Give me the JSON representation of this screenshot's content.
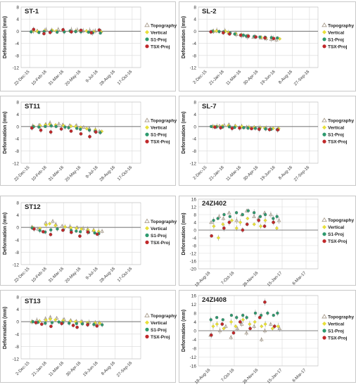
{
  "chart_data": [
    {
      "type": "scatter",
      "title": "ST-1",
      "ylabel": "Deformation (mm)",
      "ylim": [
        -12,
        8
      ],
      "yticks": [
        -12,
        -8,
        -4,
        0,
        4,
        8
      ],
      "xticks": [
        "22-Dec-15",
        "10-Feb-16",
        "31-Mar-16",
        "20-May-16",
        "9-Jul-16",
        "28-Aug-16",
        "17-Oct-16"
      ],
      "grid": true,
      "legend": "right",
      "series": [
        {
          "name": "Topography",
          "values": [
            0.3,
            0.2,
            0.5,
            0.4,
            0.6,
            0.3,
            0.5,
            0.4,
            0.2,
            0.3,
            0.1,
            0.0
          ]
        },
        {
          "name": "Vertical",
          "values": [
            0.1,
            0.0,
            0.2,
            0.3,
            0.1,
            0.2,
            0.0,
            0.1,
            0.2,
            0.1,
            -0.1,
            -0.2
          ]
        },
        {
          "name": "S1-Proj",
          "values": [
            -0.2,
            -0.4,
            -0.1,
            0.0,
            -0.3,
            -0.2,
            0.1,
            -0.1,
            -0.2,
            -0.3,
            -0.5,
            -0.6
          ]
        },
        {
          "name": "TSX-Proj",
          "values": [
            0.6,
            -0.8,
            -0.4,
            0.5,
            -0.2,
            0.3,
            -0.5,
            0.4
          ]
        }
      ]
    },
    {
      "type": "scatter",
      "title": "SL-2",
      "ylabel": "Deformation (mm)",
      "ylim": [
        -12,
        8
      ],
      "yticks": [
        -12,
        -8,
        -4,
        0,
        4,
        8
      ],
      "xticks": [
        "2-Dec-15",
        "21-Jan-16",
        "11-Mar-16",
        "30-Apr-16",
        "19-Jun-16",
        "8-Aug-16",
        "27-Sep-16"
      ],
      "grid": true,
      "legend": "right",
      "series": [
        {
          "name": "Topography",
          "values": [
            0.0,
            0.3,
            0.2,
            -0.5,
            -1.0,
            -1.4,
            -1.8,
            -2.0,
            -2.2,
            -2.4,
            -2.6,
            -2.8
          ]
        },
        {
          "name": "Vertical",
          "values": [
            0.0,
            0.1,
            0.0,
            -0.4,
            -0.8,
            -1.2,
            -1.5,
            -1.8,
            -2.0,
            -2.2,
            -2.3,
            -2.5
          ]
        },
        {
          "name": "S1-Proj",
          "values": [
            0.0,
            -0.1,
            -0.2,
            -0.6,
            -0.9,
            -1.3,
            -1.6,
            -1.7,
            -1.9,
            -2.0,
            -2.1,
            -2.2
          ]
        },
        {
          "name": "TSX-Proj",
          "values": [
            -0.2,
            -0.5,
            -0.9,
            -1.3,
            -1.6,
            -1.9,
            -2.2,
            -2.4
          ]
        }
      ]
    },
    {
      "type": "scatter",
      "title": "ST11",
      "ylabel": "Deformation (mm)",
      "ylim": [
        -12,
        8
      ],
      "yticks": [
        -12,
        -8,
        -4,
        0,
        4,
        8
      ],
      "xticks": [
        "22-Dec-15",
        "10-Feb-16",
        "31-Mar-16",
        "20-May-16",
        "9-Jul-16",
        "28-Aug-16",
        "17-Oct-16"
      ],
      "grid": true,
      "legend": "right",
      "series": [
        {
          "name": "Topography",
          "values": [
            0.2,
            0.5,
            0.8,
            1.2,
            0.9,
            0.6,
            0.4,
            0.3,
            -0.2,
            -0.6,
            -1.0,
            -1.5
          ]
        },
        {
          "name": "Vertical",
          "values": [
            0.1,
            0.3,
            0.5,
            0.7,
            0.5,
            0.3,
            0.1,
            0.0,
            -0.3,
            -0.7,
            -1.1,
            -1.6
          ]
        },
        {
          "name": "S1-Proj",
          "values": [
            -0.1,
            -0.2,
            0.0,
            0.2,
            0.0,
            -0.2,
            -0.4,
            -0.6,
            -0.9,
            -1.2,
            -1.6,
            -2.0
          ]
        },
        {
          "name": "TSX-Proj",
          "values": [
            -0.5,
            -1.2,
            -1.8,
            -0.8,
            -1.5,
            -2.4,
            -3.3,
            -1.8
          ]
        }
      ]
    },
    {
      "type": "scatter",
      "title": "SL-7",
      "ylabel": "Deformation (mm)",
      "ylim": [
        -12,
        8
      ],
      "yticks": [
        -12,
        -8,
        -4,
        0,
        4,
        8
      ],
      "xticks": [
        "2-Dec-15",
        "21-Jan-16",
        "11-Mar-16",
        "30-Apr-16",
        "19-Jun-16",
        "8-Aug-16",
        "27-Sep-16"
      ],
      "grid": true,
      "legend": "right",
      "series": [
        {
          "name": "Topography",
          "values": [
            0.0,
            0.2,
            0.4,
            0.6,
            0.3,
            0.1,
            -0.1,
            -0.3,
            -0.4,
            -0.5,
            -0.6,
            -0.8
          ]
        },
        {
          "name": "Vertical",
          "values": [
            0.0,
            0.1,
            0.2,
            0.3,
            0.1,
            0.0,
            -0.2,
            -0.3,
            -0.4,
            -0.5,
            -0.6,
            -0.7
          ]
        },
        {
          "name": "S1-Proj",
          "values": [
            0.0,
            -0.1,
            -0.2,
            -0.1,
            -0.3,
            -0.4,
            -0.5,
            -0.6,
            -0.7,
            -0.8,
            -0.9,
            -1.0
          ]
        },
        {
          "name": "TSX-Proj",
          "values": [
            -0.2,
            -0.4,
            -0.6,
            -0.5,
            -0.7,
            -0.9,
            -1.0,
            -1.1
          ]
        }
      ]
    },
    {
      "type": "scatter",
      "title": "ST12",
      "ylabel": "Deformation (mm)",
      "ylim": [
        -12,
        8
      ],
      "yticks": [
        -12,
        -8,
        -4,
        0,
        4,
        8
      ],
      "xticks": [
        "22-Dec-15",
        "10-Feb-16",
        "31-Mar-16",
        "20-May-16",
        "9-Jul-16",
        "28-Aug-16",
        "17-Oct-16"
      ],
      "grid": true,
      "legend": "right",
      "series": [
        {
          "name": "Topography",
          "values": [
            0.2,
            -0.5,
            1.5,
            2.0,
            1.0,
            0.5,
            0.2,
            0.0,
            -0.3,
            -0.6,
            -0.9,
            -1.2
          ]
        },
        {
          "name": "Vertical",
          "values": [
            0.0,
            -0.3,
            0.8,
            1.2,
            0.6,
            0.2,
            -0.1,
            -0.3,
            -0.5,
            -0.8,
            -1.0,
            -1.3
          ]
        },
        {
          "name": "S1-Proj",
          "values": [
            -0.2,
            -1.0,
            -1.5,
            -0.8,
            -0.5,
            -0.8,
            -1.0,
            -1.2,
            -1.4,
            -1.6,
            -1.8,
            -2.0
          ]
        },
        {
          "name": "TSX-Proj",
          "values": [
            -0.5,
            -1.4,
            -2.3,
            -0.9,
            -1.6,
            -2.8,
            -1.5,
            -2.2
          ]
        }
      ]
    },
    {
      "type": "scatter",
      "title": "24ZI402",
      "ylabel": "Deformation (mm)",
      "ylim": [
        -20,
        16
      ],
      "yticks": [
        -20,
        -16,
        -12,
        -8,
        -4,
        0,
        4,
        8,
        12,
        16
      ],
      "xticks": [
        "18-Aug-16",
        "7-Oct-16",
        "26-Nov-16",
        "15-Jan-17",
        "6-Mar-17"
      ],
      "grid": true,
      "legend": "right",
      "series": [
        {
          "name": "Topography",
          "values": [
            4,
            7,
            6,
            9,
            5,
            8,
            10,
            7,
            6,
            9,
            8,
            5
          ]
        },
        {
          "name": "Vertical",
          "values": [
            2,
            -4,
            3,
            5,
            1,
            4,
            6,
            3,
            2,
            5,
            4,
            1
          ]
        },
        {
          "name": "S1-Proj",
          "values": [
            5,
            6,
            8,
            7,
            9,
            8,
            10,
            9,
            7,
            8,
            6,
            7
          ]
        },
        {
          "name": "TSX-Proj",
          "values": [
            -3,
            1,
            4,
            0,
            3,
            5,
            2,
            4
          ]
        }
      ]
    },
    {
      "type": "scatter",
      "title": "ST13",
      "ylabel": "Deformation (mm)",
      "ylim": [
        -12,
        8
      ],
      "yticks": [
        -12,
        -8,
        -4,
        0,
        4,
        8
      ],
      "xticks": [
        "2-Dec-15",
        "21-Jan-16",
        "11-Mar-16",
        "30-Apr-16",
        "19-Jun-16",
        "8-Aug-16",
        "27-Sep-16"
      ],
      "grid": true,
      "legend": "right",
      "series": [
        {
          "name": "Topography",
          "values": [
            0.0,
            0.5,
            1.0,
            1.5,
            1.2,
            0.8,
            0.5,
            0.2,
            0.0,
            -0.2,
            -0.4,
            -0.5
          ]
        },
        {
          "name": "Vertical",
          "values": [
            0.0,
            0.2,
            0.5,
            0.8,
            0.6,
            0.4,
            0.2,
            0.0,
            -0.1,
            -0.3,
            -0.4,
            -0.5
          ]
        },
        {
          "name": "S1-Proj",
          "values": [
            0.0,
            -0.2,
            -0.5,
            -0.3,
            -0.1,
            -0.3,
            -0.5,
            -0.6,
            -0.7,
            -0.8,
            -0.9,
            -1.0
          ]
        },
        {
          "name": "TSX-Proj",
          "values": [
            -0.3,
            -0.8,
            -1.5,
            -0.6,
            -1.2,
            -1.8,
            -1.0,
            -1.4
          ]
        }
      ]
    },
    {
      "type": "scatter",
      "title": "24ZI408",
      "ylabel": "Deformation (mm)",
      "ylim": [
        -16,
        16
      ],
      "yticks": [
        -16,
        -12,
        -8,
        -4,
        0,
        4,
        8,
        12,
        16
      ],
      "xticks": [
        "18-Aug-16",
        "7-Oct-16",
        "26-Nov-16",
        "15-Jan-17",
        "6-Mar-17"
      ],
      "grid": true,
      "legend": "right",
      "series": [
        {
          "name": "Topography",
          "values": [
            -2,
            0,
            2,
            -3,
            1,
            3,
            -1,
            2,
            -4,
            0,
            3,
            1
          ]
        },
        {
          "name": "Vertical",
          "values": [
            2,
            3,
            1,
            4,
            2,
            5,
            3,
            4,
            2,
            3,
            1,
            2
          ]
        },
        {
          "name": "S1-Proj",
          "values": [
            5,
            6,
            5,
            7,
            6,
            7,
            6,
            8,
            7,
            8,
            7,
            8
          ]
        },
        {
          "name": "TSX-Proj",
          "values": [
            -2,
            3,
            -1,
            4,
            1,
            6,
            13,
            2
          ]
        }
      ]
    }
  ],
  "colors": {
    "topography": "#a89c8c",
    "vertical": "#e8e03a",
    "s1_proj": "#2e9a6e",
    "tsx_proj": "#c0282a",
    "zero_line": "#808080",
    "grid": "#d9d9d9"
  }
}
